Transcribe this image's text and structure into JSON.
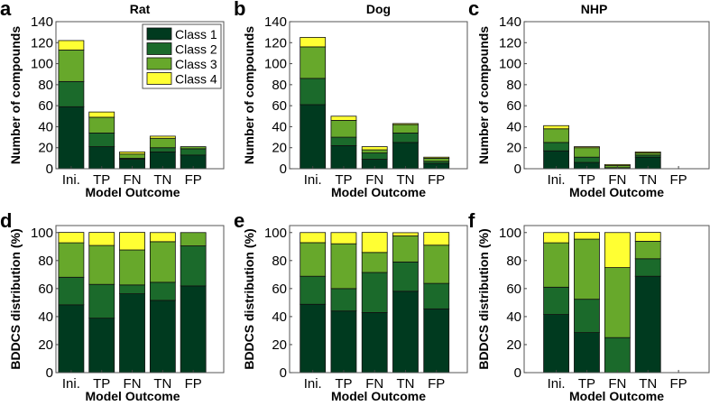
{
  "colors": {
    "Class 1": "#003a1f",
    "Class 2": "#1b6a2b",
    "Class 3": "#67a82b",
    "Class 4": "#ffff33"
  },
  "legend": [
    "Class 1",
    "Class 2",
    "Class 3",
    "Class 4"
  ],
  "chart_data": [
    {
      "panel": "a",
      "title": "Rat",
      "type": "bar",
      "stacked": true,
      "xlabel": "Model Outcome",
      "ylabel": "Number of compounds",
      "ylim": [
        0,
        140
      ],
      "yticks": [
        0,
        20,
        40,
        60,
        80,
        100,
        120,
        140
      ],
      "xlim": [
        0.5,
        6
      ],
      "categories": [
        "Ini.",
        "TP",
        "FN",
        "TN",
        "FP"
      ],
      "legend_position": "top-right",
      "series": [
        {
          "name": "Class 1",
          "values": [
            59,
            21,
            9,
            16,
            13
          ]
        },
        {
          "name": "Class 2",
          "values": [
            24,
            13,
            1,
            4,
            6
          ]
        },
        {
          "name": "Class 3",
          "values": [
            30,
            15,
            4,
            9,
            2
          ]
        },
        {
          "name": "Class 4",
          "values": [
            9,
            5,
            2,
            2,
            0
          ]
        }
      ]
    },
    {
      "panel": "b",
      "title": "Dog",
      "type": "bar",
      "stacked": true,
      "xlabel": "Model Outcome",
      "ylabel": "Number of compounds",
      "ylim": [
        0,
        140
      ],
      "yticks": [
        0,
        20,
        40,
        60,
        80,
        100,
        120,
        140
      ],
      "xlim": [
        0.25,
        6
      ],
      "categories": [
        "Ini.",
        "TP",
        "FN",
        "TN",
        "FP"
      ],
      "series": [
        {
          "name": "Class 1",
          "values": [
            61,
            22,
            9,
            25,
            5
          ]
        },
        {
          "name": "Class 2",
          "values": [
            25,
            8,
            6,
            9,
            2
          ]
        },
        {
          "name": "Class 3",
          "values": [
            30,
            16,
            3,
            8,
            3
          ]
        },
        {
          "name": "Class 4",
          "values": [
            9,
            4,
            3,
            1,
            1
          ]
        }
      ]
    },
    {
      "panel": "c",
      "title": "NHP",
      "type": "bar",
      "stacked": true,
      "xlabel": "Model Outcome",
      "ylabel": "Number of compounds",
      "ylim": [
        0,
        140
      ],
      "yticks": [
        0,
        20,
        40,
        60,
        80,
        100,
        120,
        140
      ],
      "xlim": [
        -0.05,
        6
      ],
      "categories": [
        "Ini.",
        "TP",
        "FN",
        "TN",
        "FP"
      ],
      "series": [
        {
          "name": "Class 1",
          "values": [
            17,
            6,
            0,
            11,
            0
          ]
        },
        {
          "name": "Class 2",
          "values": [
            8,
            5,
            1,
            2,
            0
          ]
        },
        {
          "name": "Class 3",
          "values": [
            13,
            9,
            2,
            2,
            0
          ]
        },
        {
          "name": "Class 4",
          "values": [
            3,
            1,
            1,
            1,
            0
          ]
        }
      ]
    },
    {
      "panel": "d",
      "title": "",
      "type": "bar",
      "stacked": true,
      "xlabel": "Model Outcome",
      "ylabel": "BDDCS distribution (%)",
      "ylim": [
        0,
        105
      ],
      "yticks": [
        0,
        20,
        40,
        60,
        80,
        100
      ],
      "xlim": [
        0.5,
        6
      ],
      "categories": [
        "Ini.",
        "TP",
        "FN",
        "TN",
        "FP"
      ],
      "series": [
        {
          "name": "Class 1",
          "values": [
            48.4,
            38.9,
            56.3,
            51.6,
            61.9
          ]
        },
        {
          "name": "Class 2",
          "values": [
            19.7,
            24.1,
            6.3,
            12.9,
            28.6
          ]
        },
        {
          "name": "Class 3",
          "values": [
            24.6,
            27.8,
            25.0,
            29.0,
            9.5
          ]
        },
        {
          "name": "Class 4",
          "values": [
            7.4,
            9.3,
            12.5,
            6.5,
            0
          ]
        }
      ]
    },
    {
      "panel": "e",
      "title": "",
      "type": "bar",
      "stacked": true,
      "xlabel": "Model Outcome",
      "ylabel": "BDDCS distribution (%)",
      "ylim": [
        0,
        105
      ],
      "yticks": [
        0,
        20,
        40,
        60,
        80,
        100
      ],
      "xlim": [
        0.25,
        6
      ],
      "categories": [
        "Ini.",
        "TP",
        "FN",
        "TN",
        "FP"
      ],
      "series": [
        {
          "name": "Class 1",
          "values": [
            48.8,
            44.0,
            42.9,
            58.1,
            45.5
          ]
        },
        {
          "name": "Class 2",
          "values": [
            20.0,
            16.0,
            28.6,
            20.9,
            18.2
          ]
        },
        {
          "name": "Class 3",
          "values": [
            24.0,
            32.0,
            14.3,
            18.6,
            27.3
          ]
        },
        {
          "name": "Class 4",
          "values": [
            7.2,
            8.0,
            14.3,
            2.3,
            9.1
          ]
        }
      ]
    },
    {
      "panel": "f",
      "title": "",
      "type": "bar",
      "stacked": true,
      "xlabel": "Model Outcome",
      "ylabel": "BDDCS distribution (%)",
      "ylim": [
        0,
        105
      ],
      "yticks": [
        0,
        20,
        40,
        60,
        80,
        100
      ],
      "xlim": [
        -0.05,
        6
      ],
      "categories": [
        "Ini.",
        "TP",
        "FN",
        "TN",
        "FP"
      ],
      "series": [
        {
          "name": "Class 1",
          "values": [
            41.5,
            28.6,
            0,
            68.8,
            0
          ]
        },
        {
          "name": "Class 2",
          "values": [
            19.5,
            23.8,
            25.0,
            12.5,
            0
          ]
        },
        {
          "name": "Class 3",
          "values": [
            31.7,
            42.9,
            50.0,
            12.5,
            0
          ]
        },
        {
          "name": "Class 4",
          "values": [
            7.3,
            4.8,
            25.0,
            6.3,
            0
          ]
        }
      ]
    }
  ]
}
